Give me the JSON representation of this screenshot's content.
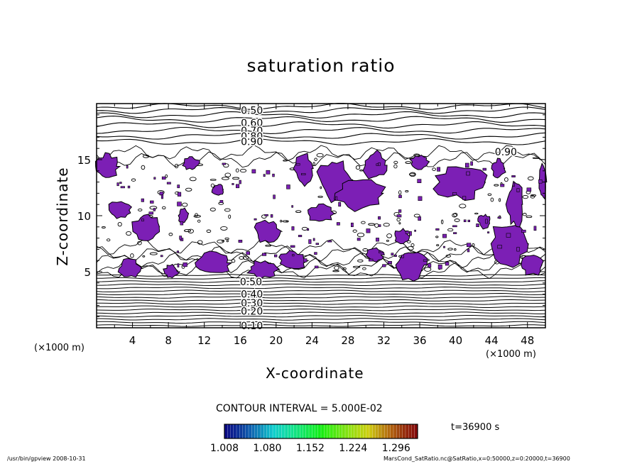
{
  "chart_data": {
    "type": "heatmap",
    "title": "saturation ratio",
    "xlabel": "X-coordinate",
    "ylabel": "Z-coordinate",
    "x_unit": "(×1000 m)",
    "xlim": [
      0,
      50
    ],
    "ylim": [
      0,
      20
    ],
    "x_ticks": [
      4,
      8,
      12,
      16,
      20,
      24,
      28,
      32,
      36,
      40,
      44,
      48
    ],
    "y_ticks": [
      5,
      10,
      15
    ],
    "contour_labels": [
      {
        "text": "0.50",
        "x": 17.3,
        "z": 19.4
      },
      {
        "text": "0.60",
        "x": 17.3,
        "z": 18.3
      },
      {
        "text": "0.70",
        "x": 17.3,
        "z": 17.6
      },
      {
        "text": "0.80",
        "x": 17.3,
        "z": 17.1
      },
      {
        "text": "0.90",
        "x": 17.3,
        "z": 16.6
      },
      {
        "text": "0.90",
        "x": 45.6,
        "z": 15.7
      },
      {
        "text": "0.50",
        "x": 17.2,
        "z": 4.1
      },
      {
        "text": "0.40",
        "x": 17.3,
        "z": 3.0
      },
      {
        "text": "0.30",
        "x": 17.3,
        "z": 2.2
      },
      {
        "text": "0.20",
        "x": 17.3,
        "z": 1.5
      },
      {
        "text": "0.10",
        "x": 17.3,
        "z": 0.2
      }
    ],
    "contour_interval": "CONTOUR INTERVAL = 5.000E-02",
    "colorbar_ticks": [
      "1.008",
      "1.080",
      "1.152",
      "1.224",
      "1.296"
    ],
    "colorbar_range": [
      1.008,
      1.332
    ],
    "supersaturated_color": "#7c1fb5",
    "time_label": "t=36900 s"
  },
  "footer": {
    "left": "/usr/bin/gpview   2008-10-31",
    "right": "MarsCond_SatRatio.nc@SatRatio,x=0:50000,z=0:20000,t=36900"
  }
}
